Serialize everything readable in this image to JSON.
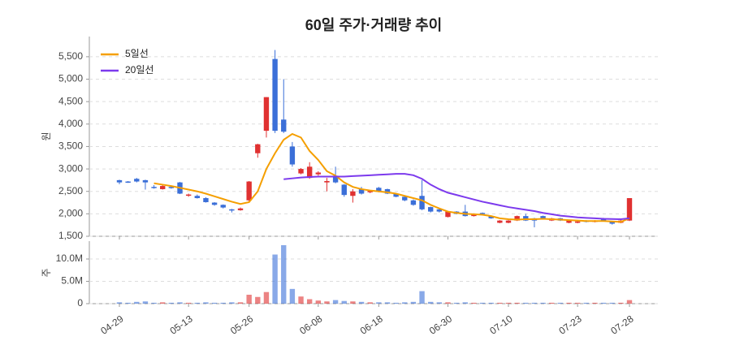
{
  "chart_data": {
    "type": "candlestick",
    "title": "60일 주가·거래량 추이",
    "y_label": "원",
    "volume_label": "주",
    "categories": [
      "04-29",
      null,
      null,
      null,
      null,
      null,
      null,
      null,
      "05-13",
      null,
      null,
      null,
      null,
      null,
      null,
      "05-26",
      null,
      null,
      null,
      null,
      null,
      null,
      null,
      "06-08",
      null,
      null,
      null,
      null,
      null,
      null,
      "06-18",
      null,
      null,
      null,
      null,
      null,
      null,
      null,
      "06-30",
      null,
      null,
      null,
      null,
      null,
      null,
      "07-10",
      null,
      null,
      null,
      null,
      null,
      null,
      null,
      "07-23",
      null,
      null,
      null,
      null,
      null,
      "07-28"
    ],
    "up_color": "#e03131",
    "down_color": "#3b6fd8",
    "open": [
      2750,
      2720,
      2780,
      2750,
      2600,
      2550,
      2600,
      2700,
      2420,
      2400,
      2350,
      2250,
      2200,
      2100,
      2080,
      2300,
      3350,
      3850,
      5450,
      4100,
      3500,
      2900,
      2800,
      2880,
      2700,
      2850,
      2650,
      2400,
      2550,
      2480,
      2580,
      2550,
      2450,
      2380,
      2300,
      2400,
      2150,
      2100,
      1930,
      2050,
      2050,
      1950,
      2020,
      1950,
      1800,
      1800,
      1850,
      1950,
      1900,
      1950,
      1850,
      1900,
      1800,
      1800,
      1850,
      1820,
      1900,
      1820,
      1800,
      1850
    ],
    "high": [
      2760,
      2730,
      2800,
      2760,
      2640,
      2650,
      2620,
      2710,
      2450,
      2430,
      2370,
      2260,
      2210,
      2110,
      2140,
      2730,
      3560,
      4600,
      5650,
      5000,
      3600,
      3020,
      3150,
      2950,
      2800,
      3050,
      2660,
      2550,
      2600,
      2530,
      2600,
      2560,
      2460,
      2390,
      2320,
      2750,
      2160,
      2110,
      2060,
      2060,
      2200,
      2010,
      2030,
      1960,
      1860,
      1860,
      1960,
      2000,
      1910,
      1960,
      1910,
      1910,
      1860,
      1840,
      1860,
      1860,
      1910,
      1830,
      1860,
      2350
    ],
    "low": [
      2660,
      2690,
      2700,
      2540,
      2560,
      2540,
      2560,
      2440,
      2380,
      2340,
      2250,
      2180,
      2120,
      2030,
      2070,
      2280,
      3250,
      3700,
      3800,
      3800,
      3050,
      2880,
      2780,
      2850,
      2500,
      2680,
      2380,
      2250,
      2430,
      2460,
      2480,
      2440,
      2370,
      2280,
      2180,
      2080,
      2030,
      2030,
      1920,
      1990,
      1940,
      1940,
      1990,
      1890,
      1790,
      1790,
      1840,
      1840,
      1700,
      1890,
      1840,
      1840,
      1790,
      1790,
      1810,
      1810,
      1840,
      1760,
      1790,
      1840
    ],
    "close": [
      2700,
      2700,
      2720,
      2700,
      2580,
      2620,
      2580,
      2450,
      2430,
      2350,
      2260,
      2200,
      2140,
      2080,
      2120,
      2720,
      3550,
      4600,
      3850,
      3830,
      3100,
      3000,
      3050,
      2920,
      2730,
      2700,
      2420,
      2500,
      2450,
      2510,
      2500,
      2450,
      2380,
      2300,
      2200,
      2100,
      2050,
      2050,
      2050,
      2000,
      1950,
      2000,
      2000,
      1900,
      1850,
      1850,
      1950,
      1850,
      1850,
      1900,
      1900,
      1850,
      1850,
      1830,
      1820,
      1850,
      1850,
      1780,
      1850,
      2350
    ],
    "series": [
      {
        "name": "5일선",
        "color": "#f59f00",
        "values": [
          null,
          null,
          null,
          null,
          2680,
          2650,
          2620,
          2580,
          2540,
          2500,
          2450,
          2390,
          2330,
          2270,
          2220,
          2260,
          2500,
          3000,
          3350,
          3650,
          3780,
          3700,
          3400,
          3200,
          2950,
          2850,
          2700,
          2600,
          2550,
          2520,
          2500,
          2480,
          2450,
          2400,
          2350,
          2300,
          2200,
          2120,
          2050,
          2020,
          2000,
          1990,
          1980,
          1950,
          1900,
          1880,
          1870,
          1880,
          1880,
          1890,
          1880,
          1870,
          1860,
          1850,
          1840,
          1840,
          1840,
          1830,
          1820,
          1900
        ]
      },
      {
        "name": "20일선",
        "color": "#7c3aed",
        "values": [
          null,
          null,
          null,
          null,
          null,
          null,
          null,
          null,
          null,
          null,
          null,
          null,
          null,
          null,
          null,
          null,
          null,
          null,
          null,
          2770,
          2790,
          2810,
          2820,
          2830,
          2830,
          2830,
          2830,
          2840,
          2850,
          2860,
          2870,
          2880,
          2890,
          2890,
          2860,
          2780,
          2650,
          2550,
          2470,
          2420,
          2370,
          2320,
          2270,
          2230,
          2190,
          2150,
          2120,
          2090,
          2060,
          2020,
          1990,
          1960,
          1940,
          1920,
          1910,
          1900,
          1890,
          1885,
          1880,
          1900
        ]
      }
    ],
    "volume": [
      300000,
      200000,
      400000,
      500000,
      200000,
      300000,
      200000,
      300000,
      200000,
      200000,
      300000,
      200000,
      200000,
      300000,
      300000,
      2000000,
      1500000,
      2600000,
      11000000,
      13100000,
      3300000,
      1600000,
      1000000,
      700000,
      500000,
      800000,
      600000,
      500000,
      400000,
      300000,
      300000,
      300000,
      200000,
      300000,
      400000,
      2800000,
      400000,
      300000,
      300000,
      200000,
      300000,
      200000,
      200000,
      200000,
      200000,
      200000,
      200000,
      200000,
      200000,
      200000,
      200000,
      200000,
      200000,
      200000,
      200000,
      200000,
      200000,
      200000,
      200000,
      800000
    ],
    "ylim": [
      1500,
      5950
    ],
    "yticks": [
      {
        "value": 1500,
        "label": "1,500"
      },
      {
        "value": 2000,
        "label": "2,000"
      },
      {
        "value": 2500,
        "label": "2,500"
      },
      {
        "value": 3000,
        "label": "3,000"
      },
      {
        "value": 3500,
        "label": "3,500"
      },
      {
        "value": 4000,
        "label": "4,000"
      },
      {
        "value": 4500,
        "label": "4,500"
      },
      {
        "value": 5000,
        "label": "5,000"
      },
      {
        "value": 5500,
        "label": "5,500"
      }
    ],
    "volume_ylim": [
      0,
      14000000
    ],
    "volume_yticks": [
      0,
      {
        "value": 5000000,
        "label": "5.0M"
      },
      {
        "value": 10000000,
        "label": "10.0M"
      }
    ],
    "grid": true,
    "legend": "upper-left"
  }
}
